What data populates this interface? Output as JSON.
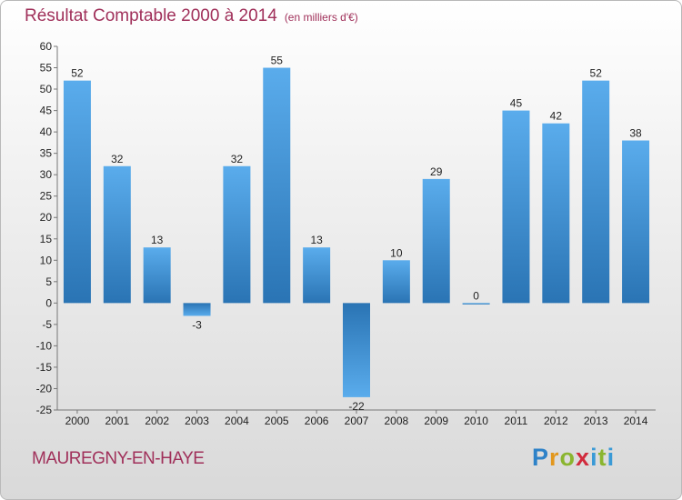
{
  "header": {
    "title": "Résultat Comptable 2000 à 2014",
    "unit": "(en milliers d'€)"
  },
  "footer": {
    "commune": "MAUREGNY-EN-HAYE",
    "logo_letters": [
      "P",
      "r",
      "o",
      "x",
      "i",
      "t",
      "i"
    ]
  },
  "chart_data": {
    "type": "bar",
    "title": "Résultat Comptable 2000 à 2014",
    "subtitle": "(en milliers d'€)",
    "categories": [
      "2000",
      "2001",
      "2002",
      "2003",
      "2004",
      "2005",
      "2006",
      "2007",
      "2008",
      "2009",
      "2010",
      "2011",
      "2012",
      "2013",
      "2014"
    ],
    "values": [
      52,
      32,
      13,
      -3,
      32,
      55,
      13,
      -22,
      10,
      29,
      0,
      45,
      42,
      52,
      38
    ],
    "labels": [
      "52",
      "32",
      "13",
      "-3",
      "32",
      "55",
      "13",
      "-22",
      "10",
      "29",
      "0",
      "45",
      "42",
      "52",
      "38"
    ],
    "ylim": [
      -25,
      60
    ],
    "yticks": [
      60,
      55,
      50,
      45,
      40,
      35,
      30,
      25,
      20,
      15,
      10,
      5,
      0,
      -5,
      -10,
      -15,
      -20,
      -25
    ],
    "ytick_labels": [
      "60",
      "55",
      "50",
      "45",
      "40",
      "35",
      "30",
      "25",
      "20",
      "15",
      "10",
      "5",
      "0",
      "-5",
      "-10",
      "-15",
      "-20",
      "-25"
    ],
    "grid": false,
    "colors": {
      "bar_light": "#5aacec",
      "bar_dark": "#2a74b4",
      "title": "#a0305a"
    }
  }
}
